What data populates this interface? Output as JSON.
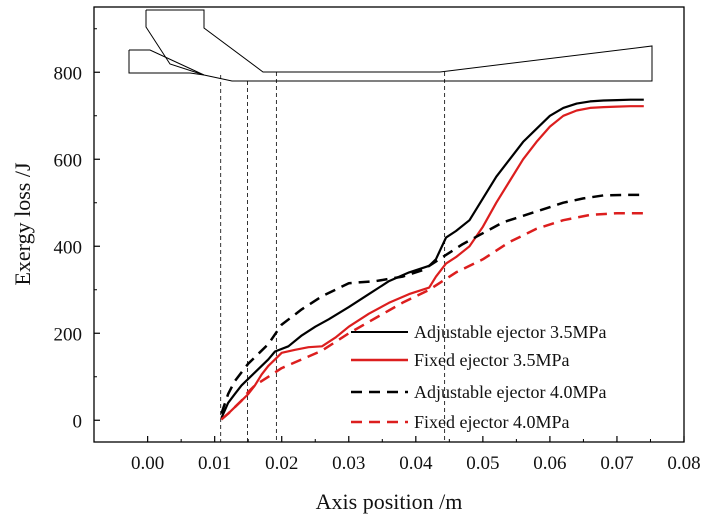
{
  "chart_data": {
    "type": "line",
    "title": "",
    "xlabel": "Axis position /m",
    "ylabel": "Exergy loss /J",
    "xlim": [
      -0.008,
      0.08
    ],
    "ylim": [
      -50,
      950
    ],
    "xticks": [
      0.0,
      0.01,
      0.02,
      0.03,
      0.04,
      0.05,
      0.06,
      0.07,
      0.08
    ],
    "xtick_labels": [
      "0.00",
      "0.01",
      "0.02",
      "0.03",
      "0.04",
      "0.05",
      "0.06",
      "0.07",
      "0.08"
    ],
    "yticks": [
      0,
      200,
      400,
      600,
      800
    ],
    "ytick_labels": [
      "0",
      "200",
      "400",
      "600",
      "800"
    ],
    "legend_position": "bottom-right",
    "series": [
      {
        "name": "Adjustable ejector 3.5MPa",
        "color": "#000000",
        "dash": "solid",
        "x": [
          0.011,
          0.012,
          0.013,
          0.014,
          0.015,
          0.016,
          0.017,
          0.018,
          0.019,
          0.021,
          0.023,
          0.025,
          0.027,
          0.03,
          0.033,
          0.036,
          0.039,
          0.042,
          0.043,
          0.0445,
          0.046,
          0.048,
          0.05,
          0.052,
          0.054,
          0.056,
          0.058,
          0.06,
          0.062,
          0.064,
          0.066,
          0.068,
          0.07,
          0.072,
          0.074
        ],
        "y": [
          5,
          40,
          60,
          80,
          95,
          110,
          125,
          140,
          158,
          170,
          195,
          215,
          232,
          260,
          290,
          320,
          340,
          355,
          370,
          420,
          435,
          460,
          510,
          560,
          600,
          640,
          670,
          700,
          718,
          728,
          733,
          735,
          736,
          737,
          737
        ]
      },
      {
        "name": "Fixed ejector 3.5MPa",
        "color": "#dc1e1e",
        "dash": "solid",
        "x": [
          0.011,
          0.012,
          0.013,
          0.014,
          0.015,
          0.016,
          0.017,
          0.018,
          0.019,
          0.02,
          0.022,
          0.024,
          0.026,
          0.028,
          0.03,
          0.033,
          0.036,
          0.039,
          0.042,
          0.043,
          0.0445,
          0.046,
          0.048,
          0.05,
          0.052,
          0.054,
          0.056,
          0.058,
          0.06,
          0.062,
          0.064,
          0.066,
          0.068,
          0.07,
          0.072,
          0.074
        ],
        "y": [
          2,
          15,
          30,
          45,
          60,
          80,
          105,
          125,
          140,
          155,
          162,
          168,
          170,
          190,
          215,
          245,
          270,
          290,
          305,
          330,
          360,
          375,
          400,
          445,
          500,
          550,
          600,
          640,
          675,
          700,
          712,
          718,
          720,
          721,
          722,
          722
        ]
      },
      {
        "name": "Adjustable ejector 4.0MPa",
        "color": "#000000",
        "dash": "dashed",
        "x": [
          0.011,
          0.012,
          0.013,
          0.014,
          0.015,
          0.016,
          0.018,
          0.02,
          0.023,
          0.026,
          0.03,
          0.034,
          0.038,
          0.041,
          0.044,
          0.047,
          0.05,
          0.053,
          0.056,
          0.059,
          0.062,
          0.065,
          0.068,
          0.071,
          0.074
        ],
        "y": [
          15,
          60,
          90,
          110,
          130,
          145,
          175,
          220,
          255,
          285,
          315,
          320,
          330,
          345,
          375,
          405,
          430,
          455,
          470,
          485,
          500,
          510,
          517,
          518,
          518
        ]
      },
      {
        "name": "Fixed ejector 4.0MPa",
        "color": "#dc1e1e",
        "dash": "dashed",
        "x": [
          0.011,
          0.012,
          0.013,
          0.014,
          0.015,
          0.016,
          0.018,
          0.02,
          0.023,
          0.026,
          0.03,
          0.034,
          0.038,
          0.042,
          0.046,
          0.05,
          0.054,
          0.058,
          0.062,
          0.066,
          0.07,
          0.074
        ],
        "y": [
          2,
          15,
          30,
          45,
          65,
          80,
          100,
          120,
          140,
          160,
          200,
          235,
          270,
          300,
          340,
          370,
          410,
          440,
          460,
          472,
          476,
          476
        ]
      }
    ],
    "reference_lines_x": [
      0.0109,
      0.0149,
      0.0192,
      0.0443
    ],
    "annotation": "ejector geometry outline (inset)"
  }
}
